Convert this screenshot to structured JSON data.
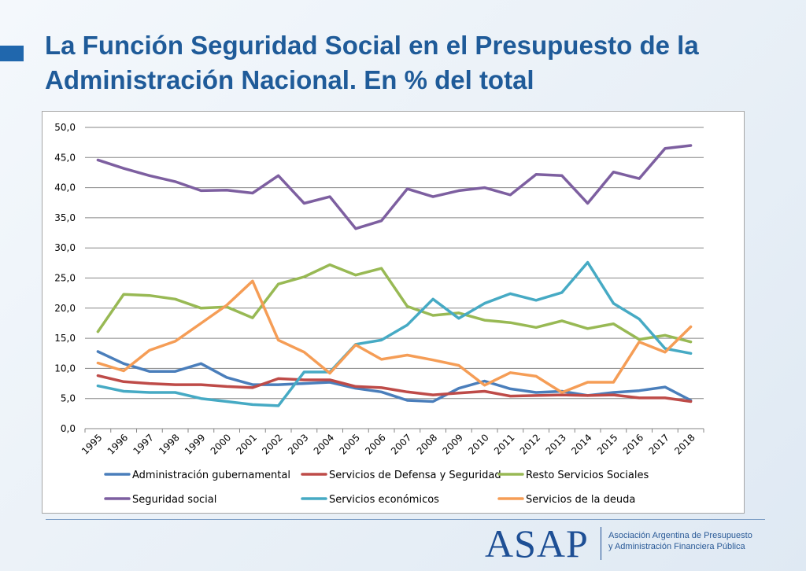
{
  "title": {
    "line1": "La Función Seguridad Social en el Presupuesto de la",
    "line2": "Administración Nacional. En % del total"
  },
  "logo": {
    "word": "ASAP",
    "sub_line1": "Asociación Argentina de Presupuesto",
    "sub_line2": "y Administración Financiera Pública"
  },
  "colors": {
    "title": "#1f5b99",
    "accent": "#2067ad",
    "grid": "#868686"
  },
  "chart_data": {
    "type": "line",
    "title": "",
    "xlabel": "",
    "ylabel": "",
    "ylim": [
      0,
      50
    ],
    "yticks": [
      "0,0",
      "5,0",
      "10,0",
      "15,0",
      "20,0",
      "25,0",
      "30,0",
      "35,0",
      "40,0",
      "45,0",
      "50,0"
    ],
    "grid": true,
    "legend_position": "bottom",
    "x": [
      "1995",
      "1996",
      "1997",
      "1998",
      "1999",
      "2000",
      "2001",
      "2002",
      "2003",
      "2004",
      "2005",
      "2006",
      "2007",
      "2008",
      "2009",
      "2010",
      "2011",
      "2012",
      "2013",
      "2014",
      "2015",
      "2016",
      "2017",
      "2018"
    ],
    "series": [
      {
        "name": "Administración gubernamental",
        "color": "#4a7ebb",
        "values": [
          12.8,
          10.8,
          9.5,
          9.5,
          10.8,
          8.5,
          7.3,
          7.3,
          7.5,
          7.7,
          6.7,
          6.1,
          4.7,
          4.5,
          6.7,
          7.9,
          6.6,
          6.0,
          6.2,
          5.5,
          6.0,
          6.3,
          6.9,
          4.7
        ]
      },
      {
        "name": "Servicios de Defensa y Seguridad",
        "color": "#be4b48",
        "values": [
          8.8,
          7.8,
          7.5,
          7.3,
          7.3,
          7.0,
          6.8,
          8.3,
          8.1,
          8.1,
          7.0,
          6.8,
          6.1,
          5.6,
          5.9,
          6.2,
          5.4,
          5.5,
          5.6,
          5.5,
          5.6,
          5.1,
          5.1,
          4.5
        ]
      },
      {
        "name": "Resto Servicios Sociales",
        "color": "#98b954",
        "values": [
          16.1,
          22.3,
          22.1,
          21.5,
          20.0,
          20.2,
          18.4,
          24.0,
          25.2,
          27.2,
          25.5,
          26.6,
          20.3,
          18.8,
          19.2,
          18.0,
          17.6,
          16.8,
          17.9,
          16.6,
          17.4,
          14.8,
          15.5,
          14.4
        ]
      },
      {
        "name": "Seguridad social",
        "color": "#7d5fa0",
        "values": [
          44.6,
          43.2,
          42.0,
          41.0,
          39.5,
          39.6,
          39.1,
          42.0,
          37.4,
          38.5,
          33.2,
          34.5,
          39.8,
          38.5,
          39.5,
          40.0,
          38.8,
          42.2,
          42.0,
          37.4,
          42.6,
          41.5,
          46.5,
          47.0
        ]
      },
      {
        "name": "Servicios económicos",
        "color": "#46aac4",
        "values": [
          7.1,
          6.2,
          6.0,
          6.0,
          5.0,
          4.5,
          4.0,
          3.8,
          9.4,
          9.4,
          14.0,
          14.7,
          17.2,
          21.5,
          18.3,
          20.8,
          22.4,
          21.3,
          22.6,
          27.6,
          20.8,
          18.2,
          13.3,
          12.5
        ]
      },
      {
        "name": "Servicios de la deuda",
        "color": "#f59d56",
        "values": [
          10.9,
          9.6,
          13.0,
          14.5,
          17.5,
          20.5,
          24.5,
          14.7,
          12.7,
          9.2,
          13.9,
          11.5,
          12.2,
          11.4,
          10.5,
          7.2,
          9.3,
          8.7,
          6.0,
          7.7,
          7.7,
          14.4,
          12.7,
          16.9
        ]
      }
    ]
  }
}
